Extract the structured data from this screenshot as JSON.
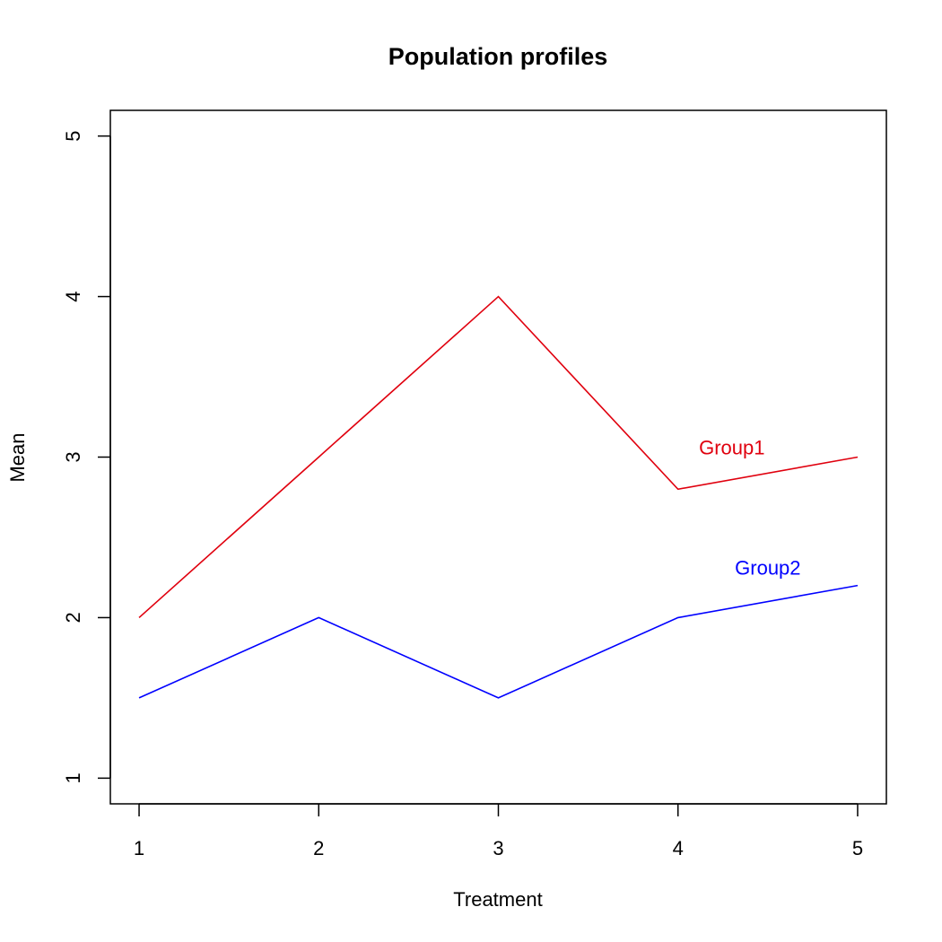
{
  "chart_data": {
    "type": "line",
    "title": "Population profiles",
    "xlabel": "Treatment",
    "ylabel": "Mean",
    "x": [
      1,
      2,
      3,
      4,
      5
    ],
    "xticks": [
      "1",
      "2",
      "3",
      "4",
      "5"
    ],
    "yticks": [
      "1",
      "2",
      "3",
      "4",
      "5"
    ],
    "xlim": [
      0.84,
      5.16
    ],
    "ylim": [
      0.84,
      5.16
    ],
    "grid": false,
    "legend": "none",
    "series": [
      {
        "name": "Group1",
        "values": [
          2,
          3,
          4,
          2.8,
          3
        ],
        "color": "#e0000e",
        "label_at": [
          4.3,
          3.05
        ]
      },
      {
        "name": "Group2",
        "values": [
          1.5,
          2,
          1.5,
          2,
          2.2
        ],
        "color": "#0000ff",
        "label_at": [
          4.5,
          2.3
        ]
      }
    ]
  }
}
